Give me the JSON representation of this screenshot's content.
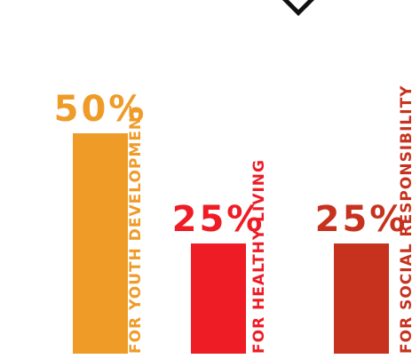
{
  "chart_data": {
    "type": "bar",
    "categories": [
      "FOR YOUTH DEVELOPMENT",
      "FOR HEALTHY LIVING",
      "FOR SOCIAL RESPONSIBILITY"
    ],
    "values": [
      50,
      25,
      25
    ],
    "value_labels": [
      "50%",
      "25%",
      "25%"
    ],
    "ylim": [
      0,
      50
    ],
    "grid": false,
    "legend": "none",
    "colors": [
      "#EF9B28",
      "#EE1C25",
      "#C7321F"
    ]
  },
  "logo": {
    "name": "ymca-logo-partial",
    "color": "#111111"
  }
}
